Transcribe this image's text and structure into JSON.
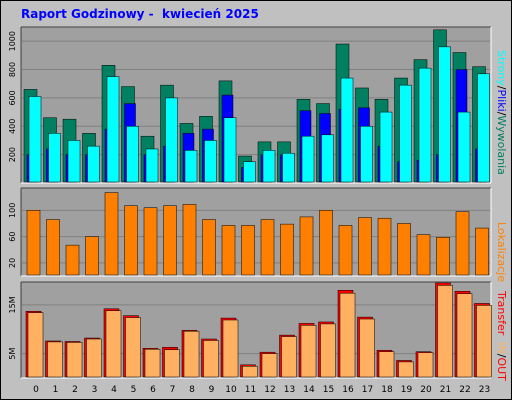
{
  "title": "Raport Godzinowy -  kwiecień 2025",
  "colors": {
    "background": "#c0c0c0",
    "plot_bg": "#a0a0a0",
    "grid": "#808080",
    "title": "#0000ff",
    "hits": "#008060",
    "files": "#0000ff",
    "pages": "#00ffff",
    "visits": "#ff8000",
    "kbytes_in": "#ff0000",
    "kbytes_out": "#ffb060"
  },
  "legend": {
    "top": {
      "strony": "Strony",
      "sep1": "/",
      "pliki": "Pliki",
      "sep2": "/",
      "wywolania": "Wywolania"
    },
    "middle": {
      "label": "Lokalizacje"
    },
    "bottom": {
      "transfer": "Transfer",
      "in": "IN",
      "sep": "/",
      "out": "OUT"
    }
  },
  "chart_data": [
    {
      "type": "bar",
      "name": "requests",
      "categories": [
        "0",
        "1",
        "2",
        "3",
        "4",
        "5",
        "6",
        "7",
        "8",
        "9",
        "10",
        "11",
        "12",
        "13",
        "14",
        "15",
        "16",
        "17",
        "18",
        "19",
        "20",
        "21",
        "22",
        "23"
      ],
      "yticks": [
        200,
        400,
        600,
        800,
        1000
      ],
      "ylim": [
        0,
        1100
      ],
      "series": [
        {
          "name": "Wywolania",
          "values": [
            660,
            460,
            450,
            350,
            830,
            680,
            330,
            690,
            420,
            470,
            720,
            190,
            290,
            290,
            590,
            560,
            980,
            670,
            590,
            740,
            870,
            1080,
            920,
            820
          ]
        },
        {
          "name": "Pliki",
          "values": [
            200,
            240,
            200,
            200,
            380,
            560,
            200,
            260,
            350,
            380,
            620,
            110,
            200,
            200,
            510,
            490,
            520,
            530,
            260,
            150,
            160,
            200,
            800,
            240
          ]
        },
        {
          "name": "Strony",
          "values": [
            610,
            350,
            300,
            260,
            750,
            400,
            240,
            600,
            230,
            300,
            460,
            150,
            230,
            210,
            330,
            340,
            740,
            400,
            500,
            690,
            810,
            960,
            500,
            770
          ]
        }
      ]
    },
    {
      "type": "bar",
      "name": "locations",
      "categories": [
        "0",
        "1",
        "2",
        "3",
        "4",
        "5",
        "6",
        "7",
        "8",
        "9",
        "10",
        "11",
        "12",
        "13",
        "14",
        "15",
        "16",
        "17",
        "18",
        "19",
        "20",
        "21",
        "22",
        "23"
      ],
      "yticks": [
        20,
        60,
        100
      ],
      "ylim": [
        0,
        134
      ],
      "series": [
        {
          "name": "Lokalizacje",
          "values": [
            100,
            86,
            47,
            60,
            127,
            107,
            104,
            107,
            109,
            86,
            77,
            77,
            86,
            79,
            90,
            100,
            77,
            89,
            88,
            80,
            63,
            59,
            98,
            73
          ]
        }
      ]
    },
    {
      "type": "bar",
      "name": "transfer",
      "categories": [
        "0",
        "1",
        "2",
        "3",
        "4",
        "5",
        "6",
        "7",
        "8",
        "9",
        "10",
        "11",
        "12",
        "13",
        "14",
        "15",
        "16",
        "17",
        "18",
        "19",
        "20",
        "21",
        "22",
        "23"
      ],
      "yticks": [
        "5M",
        "15M"
      ],
      "ytick_values": [
        5,
        15
      ],
      "ylim": [
        0,
        19.7
      ],
      "series": [
        {
          "name": "IN",
          "values": [
            13.7,
            7.6,
            7.5,
            8.2,
            14.2,
            12.8,
            6.1,
            6.3,
            9.8,
            8.0,
            12.3,
            2.7,
            5.3,
            8.8,
            11.2,
            11.5,
            18.0,
            12.5,
            5.7,
            3.6,
            5.4,
            19.5,
            17.8,
            15.3
          ]
        },
        {
          "name": "OUT",
          "values": [
            13.4,
            7.4,
            7.3,
            8.0,
            13.8,
            12.4,
            5.9,
            5.8,
            9.6,
            7.7,
            11.9,
            2.4,
            5.0,
            8.5,
            10.8,
            11.1,
            17.4,
            12.1,
            5.4,
            3.3,
            5.2,
            19.0,
            17.3,
            14.9
          ]
        }
      ]
    }
  ]
}
